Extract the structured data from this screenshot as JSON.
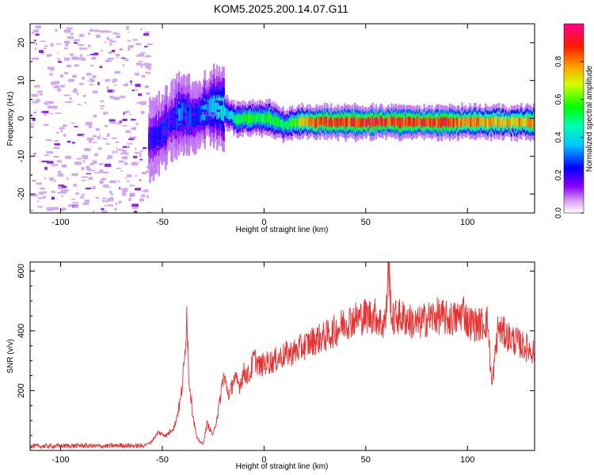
{
  "title": "KOM5.2025.200.14.07.G11",
  "colors": {
    "snr_line": "#e83232",
    "background": "#ffffff",
    "frame": "#000000"
  },
  "chart_data": [
    {
      "type": "heatmap",
      "title": "KOM5.2025.200.14.07.G11",
      "xlabel": "Height of straight line (km)",
      "ylabel": "Frequency (Hz)",
      "xlim": [
        -115,
        133
      ],
      "ylim": [
        -25,
        25
      ],
      "x_ticks": [
        "-100",
        "-50",
        "0",
        "50",
        "100"
      ],
      "x_tick_values": [
        -100,
        -50,
        0,
        50,
        100
      ],
      "y_ticks": [
        "20",
        "10",
        "0",
        "-10",
        "-20"
      ],
      "y_tick_values": [
        20,
        10,
        0,
        -10,
        -20
      ],
      "colorbar": {
        "label": "Normalized spectral amplitude",
        "range": [
          0,
          1
        ],
        "ticks": [
          "0.0",
          "0.2",
          "0.4",
          "0.6",
          "0.8"
        ],
        "tick_values": [
          0.0,
          0.2,
          0.4,
          0.6,
          0.8
        ],
        "colormap": "rainbow (violet-blue-cyan-green-yellow-red-magenta)"
      },
      "ridge": {
        "description": "strong signal track of normalized amplitude along height",
        "height_km": [
          -57,
          -52,
          -48,
          -45,
          -42,
          -38,
          -34,
          -30,
          -26,
          -22,
          -18,
          -14,
          -10,
          -6,
          -2,
          2,
          6,
          10,
          14,
          20,
          30,
          40,
          50,
          60,
          70,
          80,
          90,
          100,
          110,
          120,
          133
        ],
        "frequency_hz": [
          -6,
          -4,
          -2,
          0,
          1,
          1,
          0,
          2,
          3,
          3,
          1,
          0,
          0,
          0,
          0,
          0,
          -1,
          -2,
          -1,
          -1,
          -1,
          -1,
          -1,
          -1,
          -1,
          -1,
          -1,
          -1,
          -1,
          -1,
          -1
        ],
        "amplitude": [
          0.2,
          0.25,
          0.3,
          0.2,
          0.35,
          0.3,
          0.25,
          0.35,
          0.4,
          0.45,
          0.4,
          0.5,
          0.55,
          0.6,
          0.55,
          0.6,
          0.55,
          0.5,
          0.6,
          0.8,
          0.9,
          0.9,
          0.95,
          0.9,
          0.9,
          0.95,
          0.9,
          0.85,
          0.8,
          0.8,
          0.8
        ]
      },
      "noise_region_km": [
        -115,
        -57
      ]
    },
    {
      "type": "line",
      "xlabel": "Height of straight line (km)",
      "ylabel": "SNR (v/v)",
      "xlim": [
        -115,
        133
      ],
      "ylim": [
        0,
        630
      ],
      "x_ticks": [
        "-100",
        "-50",
        "0",
        "50",
        "100"
      ],
      "x_tick_values": [
        -100,
        -50,
        0,
        50,
        100
      ],
      "y_ticks": [
        "600",
        "400",
        "200"
      ],
      "y_tick_values": [
        600,
        400,
        200
      ],
      "series": [
        {
          "x": [
            -115,
            -100,
            -90,
            -80,
            -70,
            -60,
            -56,
            -52,
            -48,
            -44,
            -41,
            -39,
            -38,
            -37,
            -35,
            -33,
            -30,
            -28,
            -25,
            -22,
            -20,
            -17,
            -15,
            -12,
            -10,
            -7,
            -5,
            -2,
            0,
            5,
            10,
            15,
            20,
            25,
            30,
            35,
            40,
            45,
            50,
            55,
            58,
            60,
            61,
            63,
            65,
            70,
            75,
            80,
            85,
            90,
            95,
            98,
            100,
            105,
            110,
            112,
            115,
            120,
            125,
            130,
            133
          ],
          "y": [
            14,
            15,
            16,
            14,
            17,
            15,
            25,
            60,
            50,
            80,
            170,
            300,
            480,
            250,
            120,
            40,
            20,
            90,
            50,
            150,
            250,
            180,
            240,
            220,
            260,
            250,
            310,
            280,
            290,
            300,
            320,
            330,
            350,
            370,
            380,
            400,
            430,
            440,
            450,
            450,
            420,
            440,
            630,
            430,
            450,
            440,
            420,
            440,
            450,
            440,
            440,
            470,
            430,
            420,
            430,
            210,
            410,
            380,
            360,
            340,
            330
          ]
        }
      ]
    }
  ]
}
